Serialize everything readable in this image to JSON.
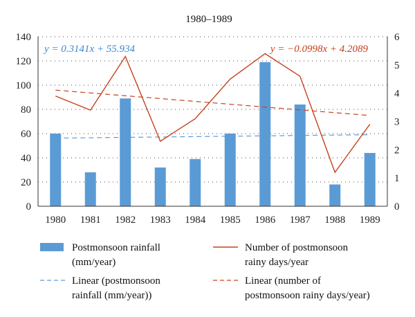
{
  "chart_data": {
    "type": "bar",
    "title": "1980–1989",
    "categories": [
      "1980",
      "1981",
      "1982",
      "1983",
      "1984",
      "1985",
      "1986",
      "1987",
      "1988",
      "1989"
    ],
    "series": [
      {
        "name": "Postmonsoon rainfall (mm/year)",
        "type": "bar",
        "axis": "left",
        "color": "#5b9bd5",
        "values": [
          60,
          28,
          89,
          32,
          39,
          60,
          119,
          84,
          18,
          44
        ]
      },
      {
        "name": "Number of postmonsoon rainy days/year",
        "type": "line",
        "axis": "right",
        "color": "#c8401c",
        "values": [
          3.9,
          3.4,
          5.3,
          2.3,
          3.1,
          4.5,
          5.4,
          4.6,
          1.2,
          2.9
        ]
      },
      {
        "name": "Linear (postmonsoon rainfall (mm/year))",
        "type": "trendline",
        "axis": "left",
        "color": "#5b9bd5",
        "style": "dashed",
        "slope": 0.3141,
        "intercept": 55.934
      },
      {
        "name": "Linear (number of postmonsoon rainy days/year)",
        "type": "trendline",
        "axis": "right",
        "color": "#c8401c",
        "style": "dashed",
        "slope": -0.0998,
        "intercept": 4.2089
      }
    ],
    "left_axis": {
      "min": 0,
      "max": 140,
      "step": 20,
      "ticks": [
        "0",
        "20",
        "40",
        "60",
        "80",
        "100",
        "120",
        "140"
      ]
    },
    "right_axis": {
      "min": 0,
      "max": 6,
      "step": 1,
      "ticks": [
        "0",
        "1",
        "2",
        "3",
        "4",
        "5",
        "6"
      ]
    },
    "equations": {
      "rainfall": "y = 0.3141x + 55.934",
      "rainy_days": "y = −0.0998x + 4.2089"
    },
    "grid": "horizontal dotted",
    "legend_position": "bottom",
    "legend": [
      {
        "label": [
          "Postmonsoon rainfall",
          "(mm/year)"
        ],
        "kind": "bar",
        "color": "#5b9bd5"
      },
      {
        "label": [
          "Number of postmonsoon",
          "rainy days/year"
        ],
        "kind": "line",
        "color": "#c8401c"
      },
      {
        "label": [
          "Linear (postmonsoon",
          "rainfall (mm/year))"
        ],
        "kind": "dash",
        "color": "#5b9bd5"
      },
      {
        "label": [
          "Linear (number of",
          "postmonsoon rainy days/year)"
        ],
        "kind": "dash",
        "color": "#c8401c"
      }
    ]
  }
}
